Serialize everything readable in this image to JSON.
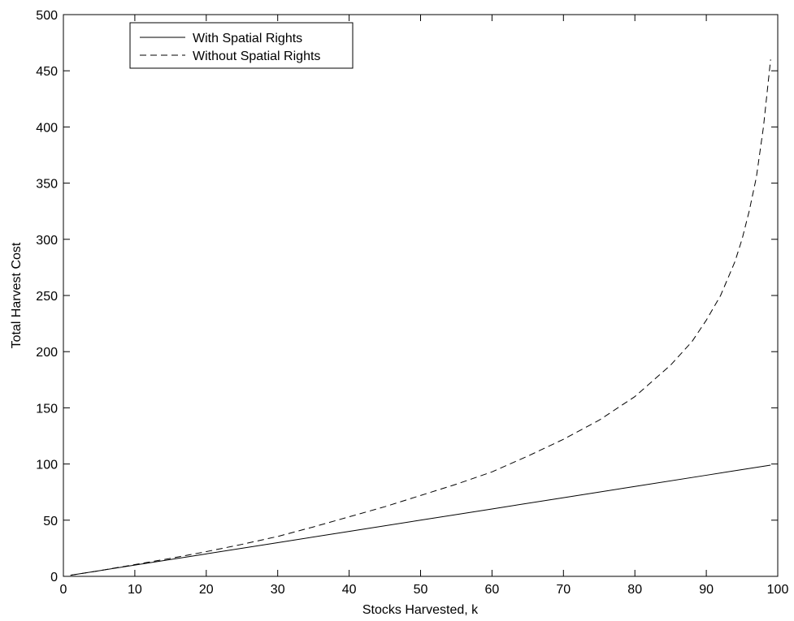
{
  "chart_data": {
    "type": "line",
    "title": "",
    "xlabel": "Stocks Harvested, k",
    "ylabel": "Total Harvest Cost",
    "xlim": [
      0,
      100
    ],
    "ylim": [
      0,
      500
    ],
    "xticks": [
      0,
      10,
      20,
      30,
      40,
      50,
      60,
      70,
      80,
      90,
      100
    ],
    "yticks": [
      0,
      50,
      100,
      150,
      200,
      250,
      300,
      350,
      400,
      450,
      500
    ],
    "grid": false,
    "legend_position": "top-left",
    "series": [
      {
        "name": "With Spatial Rights",
        "style": "solid",
        "color": "#000000",
        "x": [
          1,
          10,
          20,
          30,
          40,
          50,
          60,
          70,
          80,
          90,
          99
        ],
        "y": [
          1,
          10,
          20,
          30,
          40,
          50,
          60,
          70,
          80,
          90,
          99
        ]
      },
      {
        "name": "Without Spatial Rights",
        "style": "dashed",
        "color": "#000000",
        "x": [
          1,
          5,
          10,
          15,
          20,
          25,
          30,
          35,
          40,
          45,
          50,
          55,
          60,
          65,
          70,
          75,
          80,
          85,
          88,
          90,
          92,
          94,
          95,
          96,
          97,
          98,
          99
        ],
        "y": [
          1,
          5,
          10.5,
          16,
          22,
          28.5,
          35.5,
          44,
          53,
          62,
          72,
          82,
          93,
          107,
          122,
          139,
          160,
          188,
          209,
          228,
          250,
          280,
          300,
          325,
          355,
          400,
          460
        ]
      }
    ]
  }
}
